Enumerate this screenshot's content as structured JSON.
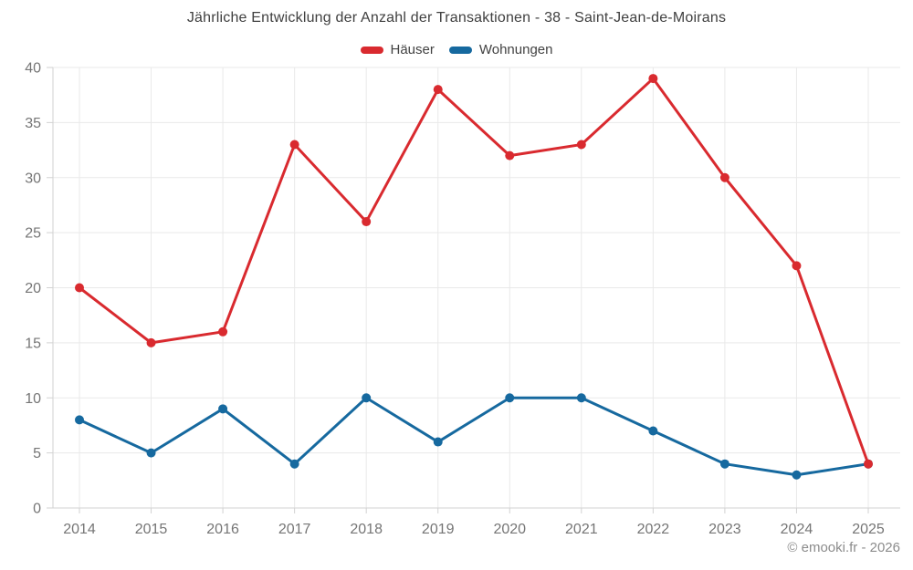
{
  "title": "Jährliche Entwicklung der Anzahl der Transaktionen - 38 - Saint-Jean-de-Moirans",
  "watermark": "© emooki.fr - 2026",
  "colors": {
    "haeuser": "#d92a2f",
    "wohnungen": "#16699f",
    "title_text": "#404040",
    "axis_text": "#757575",
    "grid": "#e9e9e9",
    "axis_line": "#d2d2d2",
    "background": "#ffffff"
  },
  "chart_data": {
    "type": "line",
    "title": "Jährliche Entwicklung der Anzahl der Transaktionen - 38 - Saint-Jean-de-Moirans",
    "categories": [
      "2014",
      "2015",
      "2016",
      "2017",
      "2018",
      "2019",
      "2020",
      "2021",
      "2022",
      "2023",
      "2024",
      "2025"
    ],
    "series": [
      {
        "name": "Häuser",
        "color_key": "haeuser",
        "values": [
          20,
          15,
          16,
          33,
          26,
          38,
          32,
          33,
          39,
          30,
          22,
          4
        ]
      },
      {
        "name": "Wohnungen",
        "color_key": "wohnungen",
        "values": [
          8,
          5,
          9,
          4,
          10,
          6,
          10,
          10,
          7,
          4,
          3,
          4
        ]
      }
    ],
    "xlabel": "",
    "ylabel": "",
    "ylim": [
      0,
      40
    ],
    "ytick_step": 5,
    "grid": true,
    "legend_position": "top"
  }
}
